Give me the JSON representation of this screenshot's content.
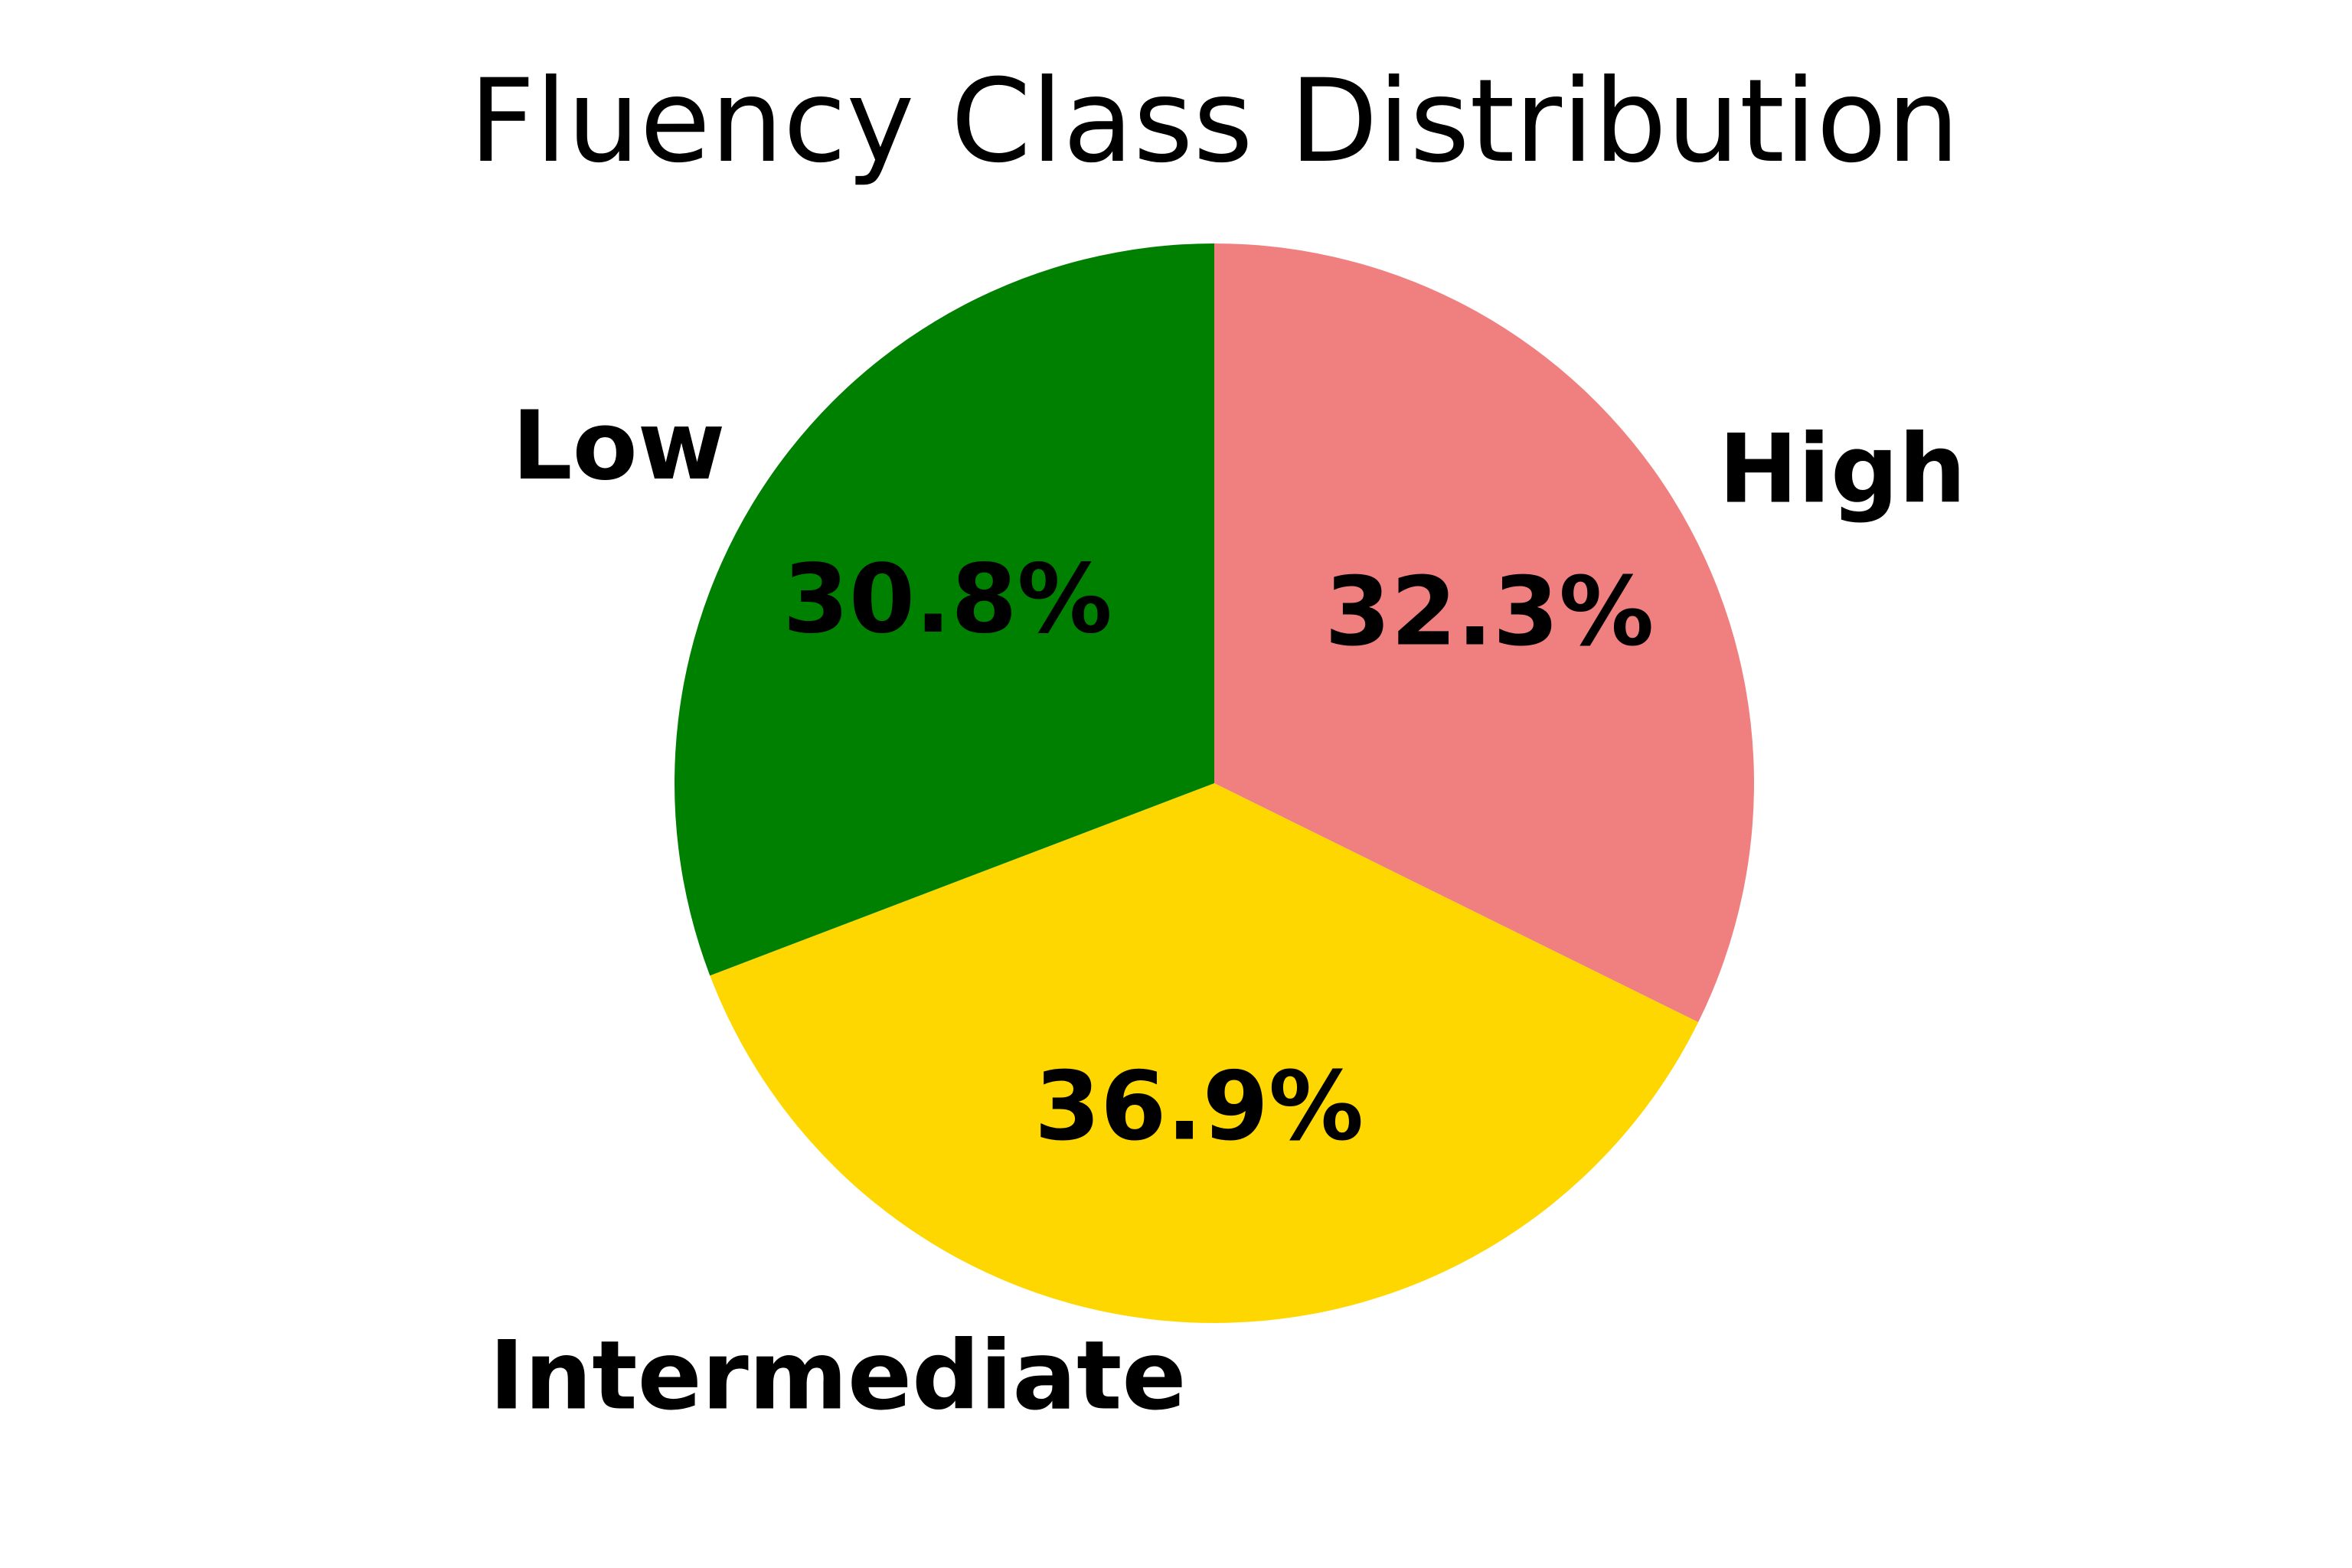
{
  "chart_data": {
    "type": "pie",
    "title": "Fluency Class Distribution",
    "start_angle_deg": 90,
    "direction": "clockwise",
    "slices": [
      {
        "label": "High",
        "value": 32.3,
        "pct_label": "32.3%",
        "color": "#F08080"
      },
      {
        "label": "Intermediate",
        "value": 36.9,
        "pct_label": "36.9%",
        "color": "#FFD700"
      },
      {
        "label": "Low",
        "value": 30.8,
        "pct_label": "30.8%",
        "color": "#008000"
      }
    ]
  }
}
